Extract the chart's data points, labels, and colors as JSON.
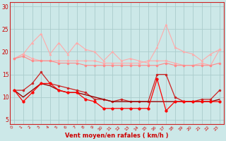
{
  "x": [
    0,
    1,
    2,
    3,
    4,
    5,
    6,
    7,
    8,
    9,
    10,
    11,
    12,
    13,
    14,
    15,
    16,
    17,
    18,
    19,
    20,
    21,
    22,
    23
  ],
  "series": [
    {
      "name": "s1_light_zigzag",
      "color": "#ffaaaa",
      "linewidth": 0.8,
      "linestyle": "-",
      "marker": "^",
      "markersize": 2.0,
      "y": [
        18.5,
        19.5,
        22.0,
        24.0,
        19.5,
        22.0,
        19.5,
        22.0,
        20.5,
        20.0,
        18.0,
        20.0,
        18.0,
        18.5,
        18.0,
        17.5,
        21.0,
        26.0,
        21.0,
        20.0,
        19.5,
        18.0,
        19.5,
        20.5
      ]
    },
    {
      "name": "s2_light_flat_markers",
      "color": "#ffaaaa",
      "linewidth": 0.8,
      "linestyle": "-",
      "marker": "o",
      "markersize": 2.0,
      "y": [
        18.5,
        19.5,
        18.5,
        18.0,
        18.0,
        18.0,
        18.0,
        18.0,
        18.0,
        18.0,
        17.5,
        17.5,
        17.5,
        17.5,
        17.5,
        18.0,
        18.0,
        18.0,
        17.5,
        17.0,
        17.0,
        17.5,
        17.0,
        20.5
      ]
    },
    {
      "name": "s3_med_flat",
      "color": "#ff8888",
      "linewidth": 0.8,
      "linestyle": "-",
      "marker": "o",
      "markersize": 2.0,
      "y": [
        18.5,
        19.0,
        18.0,
        18.0,
        18.0,
        17.5,
        17.5,
        17.5,
        17.0,
        17.0,
        17.0,
        17.0,
        17.0,
        17.0,
        17.0,
        17.0,
        17.0,
        17.5,
        17.0,
        17.0,
        17.0,
        17.0,
        17.0,
        17.5
      ]
    },
    {
      "name": "s4_dark_marker_dots",
      "color": "#cc2222",
      "linewidth": 0.9,
      "linestyle": "-",
      "marker": "o",
      "markersize": 2.0,
      "y": [
        11.5,
        11.5,
        13.0,
        15.5,
        13.0,
        12.5,
        12.0,
        11.5,
        11.0,
        9.5,
        9.5,
        9.0,
        9.5,
        9.0,
        9.0,
        9.0,
        15.0,
        15.0,
        10.0,
        9.0,
        9.0,
        9.5,
        9.5,
        11.5
      ]
    },
    {
      "name": "s5_dark_solid_line",
      "color": "#990000",
      "linewidth": 1.0,
      "linestyle": "-",
      "marker": null,
      "markersize": 0,
      "y": [
        11.5,
        10.0,
        11.5,
        13.0,
        12.5,
        11.5,
        11.0,
        11.0,
        10.5,
        10.0,
        9.5,
        9.0,
        9.0,
        9.0,
        9.0,
        9.0,
        9.0,
        9.0,
        9.0,
        9.0,
        9.0,
        9.0,
        9.0,
        9.5
      ]
    },
    {
      "name": "s6_red_markers",
      "color": "#ff0000",
      "linewidth": 0.9,
      "linestyle": "-",
      "marker": "o",
      "markersize": 2.5,
      "y": [
        11.5,
        9.0,
        11.0,
        13.0,
        13.0,
        11.5,
        11.0,
        11.0,
        9.5,
        9.0,
        7.5,
        7.5,
        7.5,
        7.5,
        7.5,
        7.5,
        14.0,
        7.0,
        9.0,
        9.0,
        9.0,
        9.0,
        9.0,
        9.0
      ]
    }
  ],
  "xlabel": "Vent moyen/en rafales ( km/h )",
  "xlim": [
    -0.5,
    23.5
  ],
  "ylim": [
    4,
    31
  ],
  "xticks": [
    0,
    1,
    2,
    3,
    4,
    5,
    6,
    7,
    8,
    9,
    10,
    11,
    12,
    13,
    14,
    15,
    16,
    17,
    18,
    19,
    20,
    21,
    22,
    23
  ],
  "yticks": [
    5,
    10,
    15,
    20,
    25,
    30
  ],
  "bg_color": "#cce8e8",
  "grid_color": "#aacccc",
  "tick_color": "#cc0000",
  "xlabel_color": "#cc0000",
  "spine_color": "#cc2222"
}
